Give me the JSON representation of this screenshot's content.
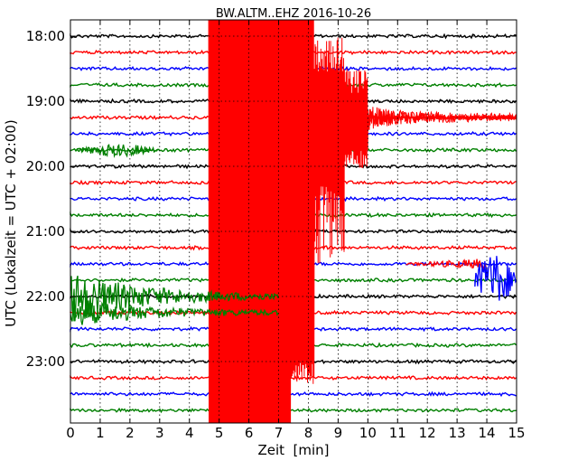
{
  "chart_data": {
    "type": "line",
    "title": "BW.ALTM..EHZ 2016-10-26",
    "xlabel": "Zeit  [min]",
    "ylabel": "UTC (Lokalzeit = UTC + 02:00)",
    "xlim": [
      0,
      15
    ],
    "x_ticks": [
      "0",
      "1",
      "2",
      "3",
      "4",
      "5",
      "6",
      "7",
      "8",
      "9",
      "10",
      "11",
      "12",
      "13",
      "14",
      "15"
    ],
    "y_ticks": [
      "18:00",
      "19:00",
      "20:00",
      "21:00",
      "22:00",
      "23:00"
    ],
    "grid": true,
    "trace_interval_min": 15,
    "first_trace": "18:00",
    "last_trace": "23:45",
    "colors": [
      "#000000",
      "#ff0000",
      "#0000ff",
      "#008000"
    ],
    "events": [
      {
        "rows": [
          0,
          23
        ],
        "start_min": 4.65,
        "end_min": 15.0,
        "color": "#ff0000",
        "description": "large earthquake, saturated amplitude"
      },
      {
        "rows": [
          7
        ],
        "start_min": 0.2,
        "end_min": 3.0,
        "color": "#008000"
      },
      {
        "rows": [
          16,
          17
        ],
        "start_min": 0.0,
        "end_min": 7.0,
        "color": "#008000"
      },
      {
        "rows": [
          14
        ],
        "start_min": 11.3,
        "end_min": 14.0,
        "color": "#ff0000"
      },
      {
        "rows": [
          15
        ],
        "start_min": 13.6,
        "end_min": 15.0,
        "color": "#0000ff"
      }
    ]
  }
}
